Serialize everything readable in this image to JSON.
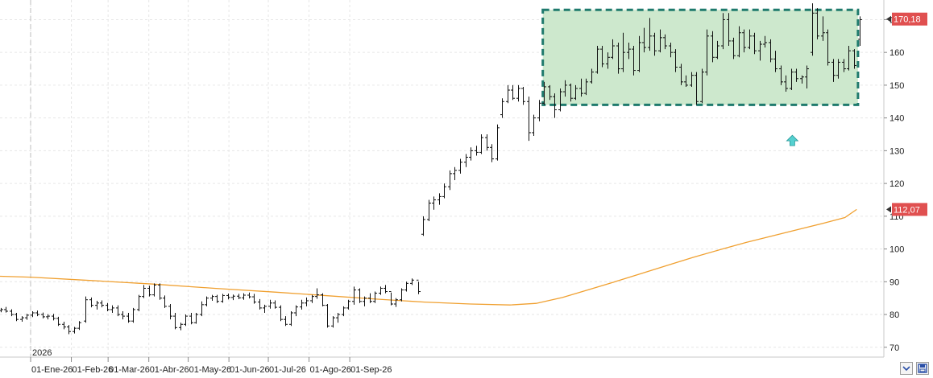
{
  "chart_data": {
    "type": "ohlc",
    "year_label": "2026",
    "x_tick_labels": [
      "01-Ene-26",
      "01-Feb-26",
      "01-Mar-26",
      "01-Abr-26",
      "01-May-26",
      "01-Jun-26",
      "01-Jul-26",
      "01-Ago-26",
      "01-Sep-26"
    ],
    "y_tick_labels": [
      "70",
      "80",
      "90",
      "100",
      "110",
      "120",
      "130",
      "140",
      "150",
      "160",
      "170"
    ],
    "ylim": [
      67,
      176
    ],
    "last_price": {
      "value": 170.18,
      "label": "170,18",
      "color": "#e05050"
    },
    "moving_average": {
      "value": 112.07,
      "label": "112,07",
      "color": "#f0a030",
      "points": [
        [
          0,
          91.8
        ],
        [
          35,
          91.4
        ],
        [
          80,
          90.4
        ],
        [
          128,
          89.3
        ],
        [
          175,
          88.0
        ],
        [
          222,
          86.8
        ],
        [
          262,
          85.7
        ],
        [
          298,
          84.7
        ],
        [
          335,
          83.8
        ],
        [
          370,
          83.2
        ],
        [
          400,
          82.9
        ],
        [
          420,
          83.4
        ],
        [
          440,
          85.2
        ],
        [
          460,
          87.6
        ],
        [
          480,
          90.0
        ],
        [
          500,
          92.5
        ],
        [
          520,
          95.0
        ],
        [
          540,
          97.5
        ],
        [
          560,
          99.8
        ],
        [
          580,
          102.0
        ],
        [
          600,
          104.0
        ],
        [
          620,
          106.0
        ],
        [
          640,
          108.0
        ],
        [
          655,
          109.6
        ],
        [
          664,
          112.07
        ]
      ]
    },
    "consolidation_box": {
      "x_start": 425,
      "x_end": 665,
      "y_low": 144,
      "y_high": 173,
      "fill": "#cde8cd",
      "stroke": "#1f7a6d"
    },
    "arrow_marker": {
      "x": 615,
      "y": 133,
      "color": "#55d0d0"
    },
    "bars": [
      [
        0,
        81.2,
        82,
        80.5,
        81
      ],
      [
        4,
        81,
        81.8,
        80.3,
        80.8
      ],
      [
        8,
        80.8,
        81.5,
        80,
        81.2
      ],
      [
        12,
        81.2,
        82,
        80.7,
        81.5
      ],
      [
        16,
        81.5,
        82.3,
        80.6,
        81
      ],
      [
        20,
        81,
        81.6,
        79.5,
        80
      ],
      [
        24,
        80,
        80.5,
        78,
        78.5
      ],
      [
        28,
        78.5,
        79.5,
        77.8,
        79
      ],
      [
        32,
        79,
        80.2,
        78.4,
        79.8
      ],
      [
        36,
        79.8,
        81,
        79.2,
        80.5
      ],
      [
        40,
        80.5,
        81.2,
        79.5,
        80
      ],
      [
        44,
        80,
        80.6,
        78.8,
        79.3
      ],
      [
        48,
        79.3,
        80.1,
        78.5,
        79.5
      ],
      [
        52,
        79.5,
        80.2,
        78.2,
        78.8
      ],
      [
        56,
        78.8,
        79.3,
        76.5,
        77
      ],
      [
        60,
        77,
        77.8,
        75.5,
        76.2
      ],
      [
        64,
        76.2,
        76.8,
        74,
        74.8
      ],
      [
        68,
        74.8,
        76.2,
        74.2,
        75.8
      ],
      [
        72,
        75.8,
        78,
        75.3,
        77.5
      ],
      [
        77,
        78,
        85.5,
        77.5,
        84.5
      ],
      [
        81,
        84.5,
        85.2,
        82.2,
        82.8
      ],
      [
        85,
        82.8,
        84.2,
        81.5,
        83.5
      ],
      [
        89,
        83.5,
        84.3,
        82.2,
        82.8
      ],
      [
        93,
        82.8,
        83.5,
        81,
        81.5
      ],
      [
        97,
        81.5,
        82.8,
        80.5,
        82
      ],
      [
        101,
        82,
        82.8,
        79.5,
        80
      ],
      [
        105,
        80,
        81,
        78.5,
        79.5
      ],
      [
        109,
        79.5,
        80.5,
        77.5,
        78
      ],
      [
        113,
        78,
        82,
        77.5,
        81.5
      ],
      [
        117,
        81.5,
        86,
        81,
        85.5
      ],
      [
        121,
        85.5,
        89,
        85,
        88
      ],
      [
        125,
        88,
        88.8,
        85.5,
        86
      ],
      [
        129,
        86,
        89.5,
        85.5,
        89
      ],
      [
        133,
        89,
        89.5,
        84.5,
        85
      ],
      [
        137,
        85,
        85.8,
        82,
        82.5
      ],
      [
        141,
        82.5,
        83.2,
        78.5,
        79.5
      ],
      [
        145,
        79.5,
        80.5,
        75.5,
        76
      ],
      [
        149,
        76,
        77.5,
        75.2,
        77
      ],
      [
        153,
        77,
        80,
        76.5,
        79.5
      ],
      [
        157,
        79.5,
        80.5,
        77,
        77.5
      ],
      [
        161,
        77.5,
        80.5,
        77.2,
        80
      ],
      [
        165,
        80,
        84,
        79.5,
        83
      ],
      [
        169,
        83,
        85.5,
        82.5,
        85
      ],
      [
        173,
        85,
        86,
        84.2,
        85.5
      ],
      [
        177,
        85.5,
        86,
        83.5,
        84
      ],
      [
        181,
        84,
        86.3,
        83.6,
        85.8
      ],
      [
        185,
        85.8,
        86.4,
        84.6,
        85.2
      ],
      [
        189,
        85.2,
        86.1,
        84.4,
        85.6
      ],
      [
        193,
        85.6,
        86.3,
        84.7,
        85.1
      ],
      [
        197,
        85.1,
        86.5,
        84.5,
        85.9
      ],
      [
        201,
        85.9,
        86.7,
        84.9,
        85.4
      ],
      [
        205,
        85.4,
        86.3,
        83.3,
        83.8
      ],
      [
        209,
        83.8,
        84.7,
        81.5,
        82
      ],
      [
        213,
        82,
        83,
        80.5,
        82.5
      ],
      [
        217,
        82.5,
        84.5,
        81.8,
        83.5
      ],
      [
        221,
        83.5,
        84.3,
        81.8,
        82.2
      ],
      [
        225,
        82.2,
        82.8,
        78,
        78.5
      ],
      [
        229,
        78.5,
        79.5,
        76.5,
        77
      ],
      [
        233,
        77,
        81,
        76.5,
        80.5
      ],
      [
        237,
        80.5,
        82.8,
        79.5,
        82.3
      ],
      [
        241,
        82.3,
        84.5,
        81.5,
        83.5
      ],
      [
        245,
        83.5,
        85.2,
        82.5,
        84.2
      ],
      [
        249,
        84.2,
        86,
        83.5,
        85.5
      ],
      [
        253,
        85.5,
        88,
        84.8,
        86
      ],
      [
        257,
        86,
        86.5,
        82.5,
        82.8
      ],
      [
        261,
        82.8,
        83.2,
        76,
        76.5
      ],
      [
        265,
        76.5,
        79.5,
        76,
        79
      ],
      [
        269,
        79,
        80.5,
        77.5,
        80
      ],
      [
        273,
        80,
        82.5,
        79.5,
        82
      ],
      [
        277,
        82,
        84.5,
        81.5,
        84
      ],
      [
        281,
        84,
        88.5,
        83,
        87.5
      ],
      [
        285,
        87.5,
        88,
        83.5,
        84
      ],
      [
        289,
        84,
        85.5,
        82.5,
        85
      ],
      [
        293,
        85,
        86.5,
        83.5,
        84
      ],
      [
        297,
        84,
        87,
        83.5,
        86.5
      ],
      [
        301,
        86.5,
        88.5,
        86,
        88
      ],
      [
        305,
        88,
        89,
        86.5,
        87
      ],
      [
        309,
        87,
        86.7,
        82.8,
        83.2
      ],
      [
        313,
        83.2,
        85,
        82.3,
        84.5
      ],
      [
        317,
        84.5,
        88,
        84,
        87.5
      ],
      [
        321,
        87.5,
        90,
        87,
        89.5
      ],
      [
        325,
        89.5,
        91,
        89,
        90.5
      ],
      [
        330,
        90.5,
        90,
        86.2,
        87
      ],
      [
        334,
        104.5,
        110,
        104,
        109
      ],
      [
        338,
        109,
        115,
        108.5,
        114
      ],
      [
        342,
        114,
        116,
        112,
        115
      ],
      [
        346,
        115,
        117,
        113.5,
        116
      ],
      [
        350,
        116,
        120,
        115.5,
        119
      ],
      [
        354,
        119,
        124,
        118,
        123
      ],
      [
        358,
        123,
        125,
        121,
        124
      ],
      [
        362,
        124,
        127.5,
        123,
        126.5
      ],
      [
        366,
        126.5,
        129,
        125,
        128
      ],
      [
        370,
        128,
        131,
        127,
        130
      ],
      [
        374,
        130,
        131.5,
        128.5,
        129.5
      ],
      [
        378,
        129.5,
        135,
        129,
        134
      ],
      [
        382,
        134,
        135,
        130,
        131
      ],
      [
        386,
        131,
        132,
        126.5,
        127.5
      ],
      [
        390,
        127.5,
        138,
        127,
        137
      ],
      [
        394,
        141,
        146,
        140,
        145
      ],
      [
        398,
        145,
        150,
        144.5,
        148.5
      ],
      [
        402,
        148.5,
        150,
        145.5,
        146
      ],
      [
        406,
        146,
        150,
        145,
        149
      ],
      [
        410,
        149,
        149.5,
        144,
        145
      ],
      [
        414,
        145,
        146.5,
        133,
        135.5
      ],
      [
        418,
        135.5,
        141,
        134.5,
        140
      ],
      [
        422,
        140,
        145.5,
        139,
        144.5
      ],
      [
        426,
        144.5,
        151,
        144,
        149.5
      ],
      [
        430,
        149.5,
        150,
        145.5,
        146.5
      ],
      [
        434,
        146.5,
        147.5,
        140,
        142.5
      ],
      [
        438,
        142.5,
        149,
        142,
        148
      ],
      [
        442,
        148,
        151.5,
        146.5,
        150
      ],
      [
        446,
        150,
        150.5,
        145,
        146
      ],
      [
        450,
        146,
        150,
        145.5,
        149
      ],
      [
        454,
        149,
        152,
        146.5,
        147.5
      ],
      [
        458,
        147.5,
        152,
        147,
        151
      ],
      [
        462,
        151,
        155,
        150.5,
        154
      ],
      [
        466,
        154,
        162,
        153.5,
        161
      ],
      [
        470,
        161,
        162,
        155.5,
        156.5
      ],
      [
        474,
        156.5,
        160,
        155,
        158.5
      ],
      [
        478,
        158.5,
        164,
        158,
        162
      ],
      [
        482,
        162,
        163,
        153.5,
        155
      ],
      [
        486,
        155,
        166,
        154,
        160
      ],
      [
        490,
        160,
        163,
        158,
        161
      ],
      [
        494,
        161,
        162,
        153,
        154.5
      ],
      [
        498,
        154.5,
        165,
        154,
        163
      ],
      [
        502,
        163,
        167.5,
        160,
        161.5
      ],
      [
        506,
        161.5,
        170.5,
        160.5,
        165
      ],
      [
        510,
        165,
        166,
        159,
        160.5
      ],
      [
        514,
        160.5,
        167,
        160,
        164.5
      ],
      [
        518,
        164.5,
        165.5,
        161,
        162
      ],
      [
        522,
        162,
        163,
        158.5,
        160
      ],
      [
        526,
        160,
        161,
        154,
        155.5
      ],
      [
        530,
        155.5,
        156.5,
        150,
        151
      ],
      [
        534,
        151,
        153,
        149.5,
        150
      ],
      [
        538,
        150,
        154,
        149.5,
        153
      ],
      [
        542,
        153,
        154,
        144,
        145
      ],
      [
        546,
        145,
        155,
        144.5,
        154
      ],
      [
        550,
        154,
        167,
        153,
        165
      ],
      [
        554,
        165,
        166.5,
        157,
        158.5
      ],
      [
        558,
        158.5,
        163.5,
        158,
        162
      ],
      [
        562,
        162,
        172,
        161,
        170
      ],
      [
        566,
        170,
        172,
        162,
        163.5
      ],
      [
        570,
        163.5,
        164.5,
        158,
        159
      ],
      [
        574,
        159,
        168,
        158.5,
        166
      ],
      [
        578,
        166,
        167,
        160,
        161.5
      ],
      [
        582,
        161.5,
        167,
        161,
        165
      ],
      [
        586,
        165,
        166,
        159.5,
        160.5
      ],
      [
        590,
        160.5,
        163.5,
        157.5,
        162.5
      ],
      [
        594,
        162.5,
        165,
        161.5,
        163
      ],
      [
        598,
        163,
        164,
        157,
        158
      ],
      [
        602,
        158,
        160.5,
        154,
        155
      ],
      [
        606,
        155,
        156,
        150,
        151
      ],
      [
        610,
        151,
        153,
        148,
        149
      ],
      [
        614,
        149,
        155,
        148.5,
        154
      ],
      [
        618,
        154,
        155,
        151,
        152
      ],
      [
        622,
        152,
        153,
        150.5,
        152.5
      ],
      [
        626,
        152.5,
        156,
        149,
        155
      ],
      [
        630,
        160,
        175,
        159,
        172
      ],
      [
        634,
        172,
        173.5,
        164,
        165
      ],
      [
        638,
        165,
        171,
        163.5,
        166
      ],
      [
        642,
        166,
        167,
        156,
        157
      ],
      [
        646,
        157,
        158,
        151,
        153
      ],
      [
        650,
        153,
        158,
        152,
        157
      ],
      [
        654,
        157,
        158,
        154,
        155
      ],
      [
        658,
        155,
        162,
        154.5,
        160.5
      ],
      [
        662,
        160.5,
        161,
        155,
        156
      ],
      [
        666,
        164,
        171,
        162,
        170
      ]
    ]
  }
}
